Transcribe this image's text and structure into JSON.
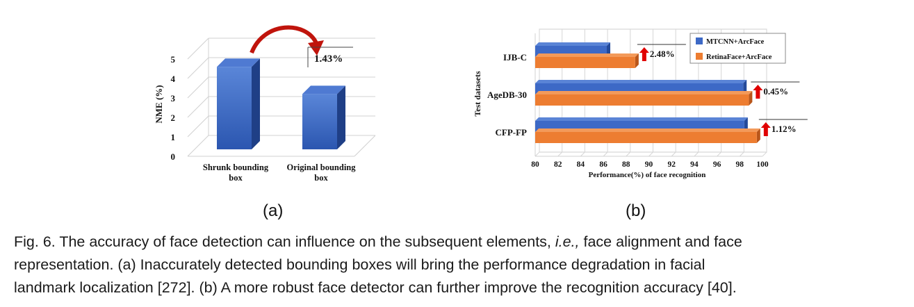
{
  "chart_data": [
    {
      "type": "bar",
      "panel": "(a)",
      "ylabel": "NME (%)",
      "ylim": [
        0,
        5
      ],
      "yticks": [
        0,
        1,
        2,
        3,
        4,
        5
      ],
      "categories": [
        "Shrunk bounding box",
        "Original bounding box"
      ],
      "category_lines": [
        [
          "Shrunk bounding",
          "box"
        ],
        [
          "Original bounding",
          "box"
        ]
      ],
      "values": [
        4.6,
        3.2
      ],
      "annotation": "1.43%",
      "grid": true,
      "colors": {
        "bar": "#3d69c6",
        "arrow": "#c0140c"
      }
    },
    {
      "type": "bar",
      "orientation": "horizontal",
      "panel": "(b)",
      "xlabel": "Performance(%)  of face recognition",
      "ylabel": "Test datasets",
      "xlim": [
        80,
        100
      ],
      "xticks": [
        80,
        82,
        84,
        86,
        88,
        90,
        92,
        94,
        96,
        98,
        100
      ],
      "categories": [
        "IJB-C",
        "AgeDB-30",
        "CFP-FP"
      ],
      "series": [
        {
          "name": "MTCNN+ArcFace",
          "values": [
            86.3,
            98.3,
            98.4
          ],
          "color": "#3d69c6"
        },
        {
          "name": "RetinaFace+ArcFace",
          "values": [
            88.8,
            98.8,
            99.5
          ],
          "color": "#ed7d31"
        }
      ],
      "annotations": [
        "2.48%",
        "0.45%",
        "1.12%"
      ],
      "legend": "top-right",
      "grid": true
    }
  ],
  "panels": {
    "a": "(a)",
    "b": "(b)"
  },
  "caption": {
    "line1_pre": "Fig. 6.  The accuracy of face detection can influence on the subsequent elements, ",
    "line1_ie": "i.e.,",
    "line1_post": " face alignment and face",
    "line2": "representation. (a) Inaccurately detected bounding boxes will bring the performance degradation in facial",
    "line3": "landmark localization [272]. (b) A more robust face detector can further improve the recognition accuracy [40]."
  }
}
